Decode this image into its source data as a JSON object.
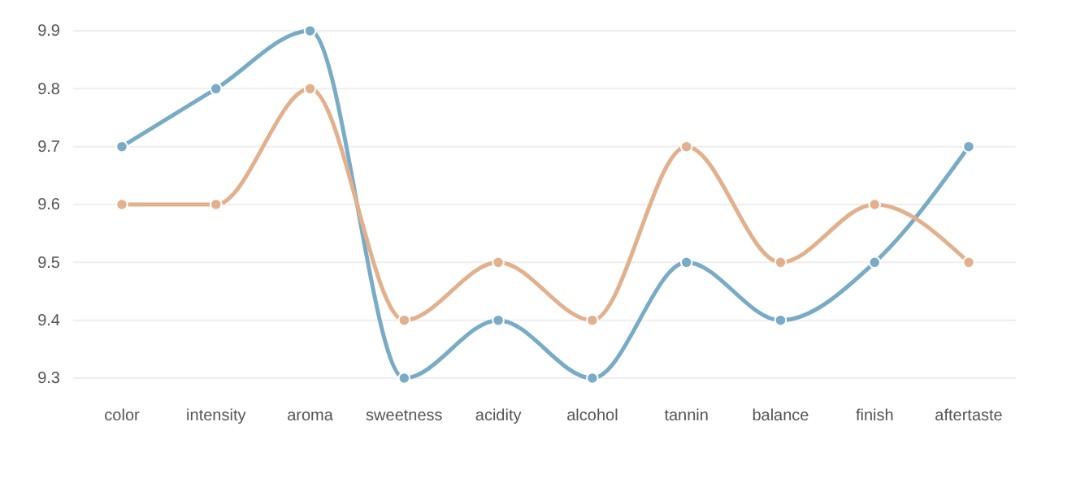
{
  "chart_data": {
    "type": "line",
    "categories": [
      "color",
      "intensity",
      "aroma",
      "sweetness",
      "acidity",
      "alcohol",
      "tannin",
      "balance",
      "finish",
      "aftertaste"
    ],
    "series": [
      {
        "color": "#78abc6",
        "values": [
          9.7,
          9.8,
          9.9,
          9.3,
          9.4,
          9.3,
          9.5,
          9.4,
          9.5,
          9.7
        ]
      },
      {
        "color": "#e2b08c",
        "values": [
          9.6,
          9.6,
          9.8,
          9.4,
          9.5,
          9.4,
          9.7,
          9.5,
          9.6,
          9.5
        ]
      }
    ],
    "ylim": [
      9.3,
      9.9
    ],
    "yticks": [
      9.3,
      9.4,
      9.5,
      9.6,
      9.7,
      9.8,
      9.9
    ],
    "grid": "y",
    "marker": "circle",
    "line_style": "solid"
  }
}
